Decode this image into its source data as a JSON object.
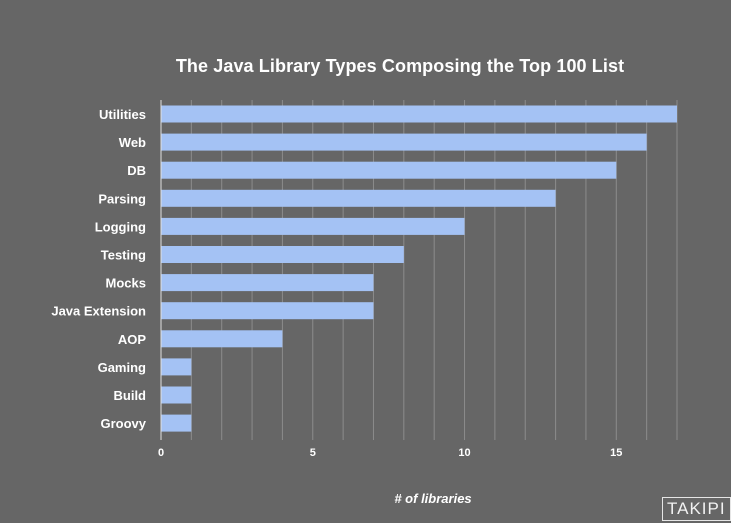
{
  "chart_data": {
    "type": "bar",
    "orientation": "horizontal",
    "title": "The Java Library Types Composing the Top 100 List",
    "xlabel": "# of libraries",
    "ylabel": "",
    "categories": [
      "Utilities",
      "Web",
      "DB",
      "Parsing",
      "Logging",
      "Testing",
      "Mocks",
      "Java Extension",
      "AOP",
      "Gaming",
      "Build",
      "Groovy"
    ],
    "values": [
      17,
      16,
      15,
      13,
      10,
      8,
      7,
      7,
      4,
      1,
      1,
      1
    ],
    "xlim": [
      0,
      17
    ],
    "x_ticks": [
      0,
      5,
      10,
      15
    ],
    "grid": true,
    "bar_color": "#a4c2f4",
    "gridline_color": "#8c8c8c",
    "background_color": "#666666"
  },
  "watermark": {
    "text": "TAKIPI"
  }
}
